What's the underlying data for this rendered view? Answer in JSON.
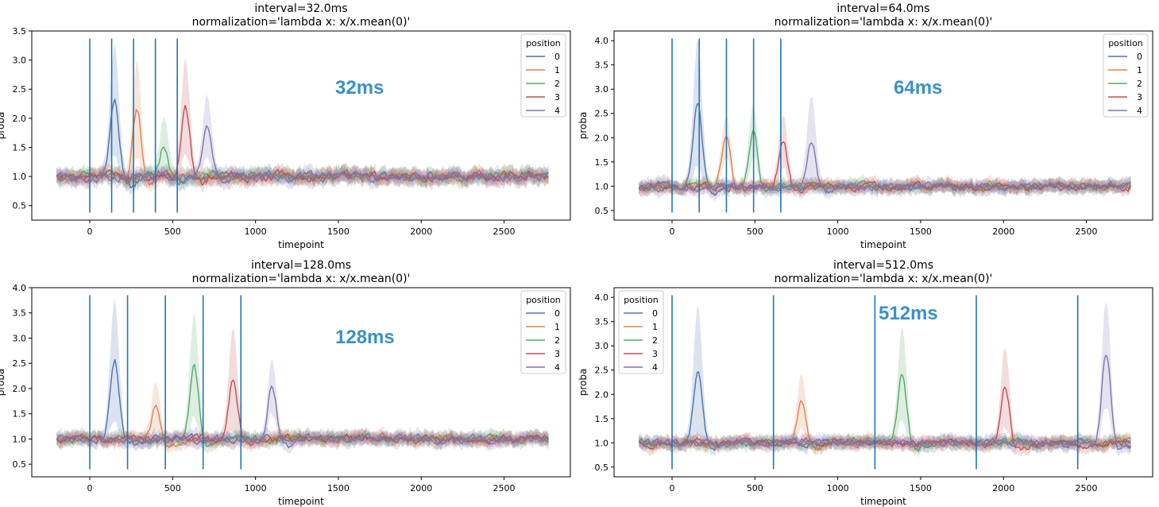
{
  "colors": {
    "stim_line": "#1f77b4",
    "annotation": "#3a91c6",
    "series": [
      "#4c72b0",
      "#dd8452",
      "#55a868",
      "#c44e52",
      "#8172b3"
    ]
  },
  "chart_data": [
    {
      "type": "line",
      "title": "interval=32.0ms\nnormalization='lambda x: x/x.mean(0)'",
      "title_lines": [
        "interval=32.0ms",
        "normalization='lambda x: x/x.mean(0)'"
      ],
      "annotation": "32ms",
      "xlabel": "timepoint",
      "ylabel": "proba",
      "xlim": [
        -350,
        2900
      ],
      "ylim": [
        0.25,
        3.5
      ],
      "xticks": [
        0,
        500,
        1000,
        1500,
        2000,
        2500
      ],
      "yticks": [
        0.5,
        1.0,
        1.5,
        2.0,
        2.5,
        3.0,
        3.5
      ],
      "vlines": [
        0,
        132,
        264,
        396,
        528
      ],
      "legend": {
        "title": "position",
        "placement": "upper right"
      },
      "series": [
        {
          "name": "0",
          "peak_x": 150,
          "peak_y": 2.38,
          "peak_ci": 3.2
        },
        {
          "name": "1",
          "peak_x": 285,
          "peak_y": 2.15,
          "peak_ci": 2.85
        },
        {
          "name": "2",
          "peak_x": 450,
          "peak_y": 1.52,
          "peak_ci": 1.92
        },
        {
          "name": "3",
          "peak_x": 578,
          "peak_y": 2.2,
          "peak_ci": 2.88
        },
        {
          "name": "4",
          "peak_x": 710,
          "peak_y": 1.85,
          "peak_ci": 2.26
        }
      ]
    },
    {
      "type": "line",
      "title": "interval=64.0ms\nnormalization='lambda x: x/x.mean(0)'",
      "title_lines": [
        "interval=64.0ms",
        "normalization='lambda x: x/x.mean(0)'"
      ],
      "annotation": "64ms",
      "xlabel": "timepoint",
      "ylabel": "proba",
      "xlim": [
        -350,
        2900
      ],
      "ylim": [
        0.3,
        4.2
      ],
      "xticks": [
        0,
        500,
        1000,
        1500,
        2000,
        2500
      ],
      "yticks": [
        0.5,
        1.0,
        1.5,
        2.0,
        2.5,
        3.0,
        3.5,
        4.0
      ],
      "vlines": [
        0,
        164,
        328,
        492,
        656
      ],
      "legend": {
        "title": "position",
        "placement": "upper right"
      },
      "series": [
        {
          "name": "0",
          "peak_x": 155,
          "peak_y": 2.72,
          "peak_ci": 3.9
        },
        {
          "name": "1",
          "peak_x": 325,
          "peak_y": 2.08,
          "peak_ci": 2.4
        },
        {
          "name": "2",
          "peak_x": 490,
          "peak_y": 2.1,
          "peak_ci": 2.52
        },
        {
          "name": "3",
          "peak_x": 670,
          "peak_y": 1.92,
          "peak_ci": 2.36
        },
        {
          "name": "4",
          "peak_x": 840,
          "peak_y": 1.95,
          "peak_ci": 2.8
        }
      ]
    },
    {
      "type": "line",
      "title": "interval=128.0ms\nnormalization='lambda x: x/x.mean(0)'",
      "title_lines": [
        "interval=128.0ms",
        "normalization='lambda x: x/x.mean(0)'"
      ],
      "annotation": "128ms",
      "xlabel": "timepoint",
      "ylabel": "proba",
      "xlim": [
        -350,
        2900
      ],
      "ylim": [
        0.25,
        4.0
      ],
      "xticks": [
        0,
        500,
        1000,
        1500,
        2000,
        2500
      ],
      "yticks": [
        0.5,
        1.0,
        1.5,
        2.0,
        2.5,
        3.0,
        3.5,
        4.0
      ],
      "vlines": [
        0,
        228,
        456,
        684,
        912
      ],
      "legend": {
        "title": "position",
        "placement": "upper right"
      },
      "series": [
        {
          "name": "0",
          "peak_x": 150,
          "peak_y": 2.58,
          "peak_ci": 3.65
        },
        {
          "name": "1",
          "peak_x": 400,
          "peak_y": 1.7,
          "peak_ci": 2.05
        },
        {
          "name": "2",
          "peak_x": 630,
          "peak_y": 2.5,
          "peak_ci": 3.4
        },
        {
          "name": "3",
          "peak_x": 865,
          "peak_y": 2.2,
          "peak_ci": 3.1
        },
        {
          "name": "4",
          "peak_x": 1100,
          "peak_y": 2.03,
          "peak_ci": 2.45
        }
      ]
    },
    {
      "type": "line",
      "title": "interval=512.0ms\nnormalization='lambda x: x/x.mean(0)'",
      "title_lines": [
        "interval=512.0ms",
        "normalization='lambda x: x/x.mean(0)'"
      ],
      "annotation": "512ms",
      "xlabel": "timepoint",
      "ylabel": "proba",
      "xlim": [
        -350,
        2900
      ],
      "ylim": [
        0.3,
        4.2
      ],
      "xticks": [
        0,
        500,
        1000,
        1500,
        2000,
        2500
      ],
      "yticks": [
        0.5,
        1.0,
        1.5,
        2.0,
        2.5,
        3.0,
        3.5,
        4.0
      ],
      "vlines": [
        0,
        612,
        1224,
        1836,
        2448
      ],
      "legend": {
        "title": "position",
        "placement": "upper left"
      },
      "series": [
        {
          "name": "0",
          "peak_x": 155,
          "peak_y": 2.48,
          "peak_ci": 3.7
        },
        {
          "name": "1",
          "peak_x": 780,
          "peak_y": 1.85,
          "peak_ci": 2.3
        },
        {
          "name": "2",
          "peak_x": 1390,
          "peak_y": 2.42,
          "peak_ci": 3.25
        },
        {
          "name": "3",
          "peak_x": 2010,
          "peak_y": 2.22,
          "peak_ci": 2.92
        },
        {
          "name": "4",
          "peak_x": 2620,
          "peak_y": 2.85,
          "peak_ci": 3.82
        }
      ]
    }
  ]
}
